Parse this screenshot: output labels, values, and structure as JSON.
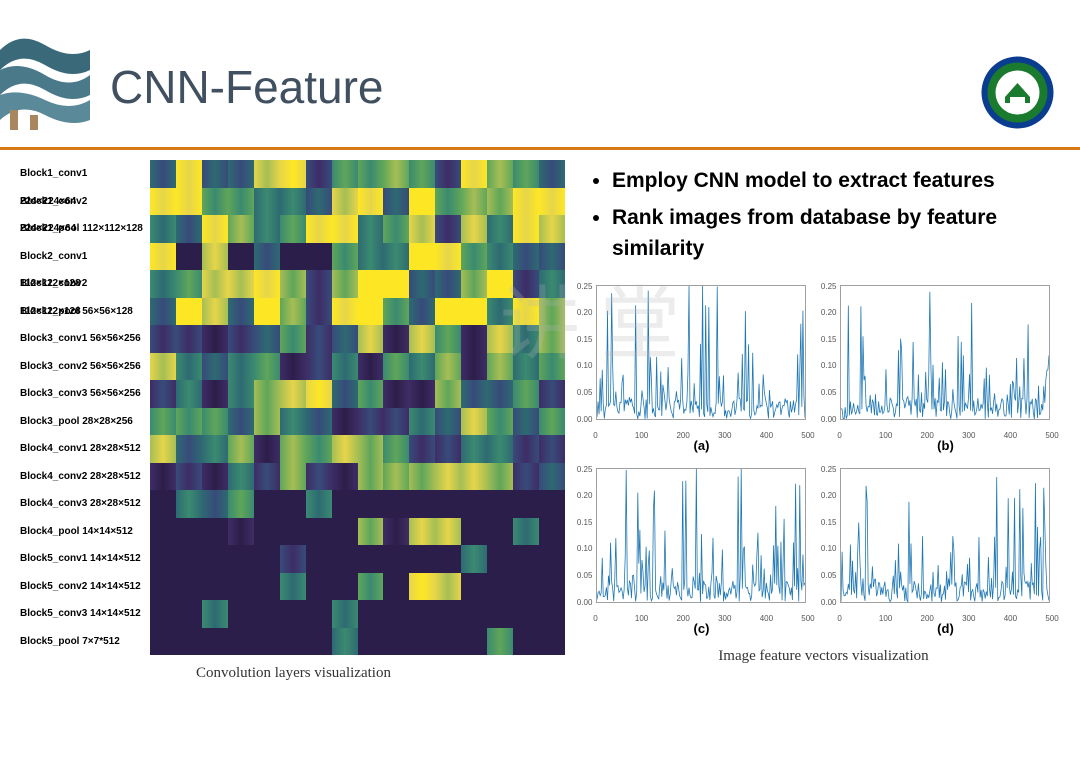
{
  "title": "CNN-Feature",
  "header": {
    "divider_color": "#d97817",
    "title_color": "#405060",
    "logo": {
      "outer_ring": "#0a3d8f",
      "inner_ring": "#1a7a2e",
      "center": "#ffffff",
      "text_top": "WUHAN UNIVERSITY"
    },
    "roof": {
      "tile_color": "#3a6a7a",
      "accent": "#a88660"
    }
  },
  "bullets": [
    "Employ CNN model to extract features",
    "Rank images from database by feature similarity"
  ],
  "conv_visualization": {
    "caption": "Convolution layers visualization",
    "layers": [
      "Block1_conv1  224×224×64",
      "Block1_conv2  224×224×64",
      "Block1_pool  112×112×128",
      "Block2_conv1  112×112×128",
      "Block2_conv2  112×112×128",
      "Block2_pool  56×56×128",
      "Block3_conv1  56×56×256",
      "Block3_conv2  56×56×256",
      "Block3_conv3  56×56×256",
      "Block3_pool  28×28×256",
      "Block4_conv1  28×28×512",
      "Block4_conv2  28×28×512",
      "Block4_conv3  28×28×512",
      "Block4_pool  14×14×512",
      "Block5_conv1  14×14×512",
      "Block5_conv2  14×14×512",
      "Block5_conv3  14×14×512",
      "Block5_pool  7×7*512"
    ],
    "heatmap": {
      "rows": 18,
      "cols": 16,
      "colormap": [
        "#2c1e4a",
        "#3e2d66",
        "#374b7a",
        "#2e6a72",
        "#3a8a70",
        "#5fa55a",
        "#a6be54",
        "#e6d54a",
        "#fde725"
      ],
      "dark_block_rows": [
        3,
        12,
        13,
        14,
        15,
        16,
        17
      ],
      "dark_block_color": "#2c1e4a"
    }
  },
  "feature_charts": {
    "caption": "Image feature vectors visualization",
    "line_color": "#1f77b4",
    "background": "#ffffff",
    "border_color": "#a0a0a0",
    "xlim": [
      0,
      500
    ],
    "ylim": [
      0,
      0.25
    ],
    "xticks": [
      0,
      100,
      200,
      300,
      400,
      500
    ],
    "yticks": [
      0.0,
      0.05,
      0.1,
      0.15,
      0.2,
      0.25
    ],
    "panels": [
      {
        "label": "(a)",
        "seed": 11
      },
      {
        "label": "(b)",
        "seed": 22
      },
      {
        "label": "(c)",
        "seed": 33
      },
      {
        "label": "(d)",
        "seed": 44
      }
    ]
  },
  "watermark": "讲 堂"
}
